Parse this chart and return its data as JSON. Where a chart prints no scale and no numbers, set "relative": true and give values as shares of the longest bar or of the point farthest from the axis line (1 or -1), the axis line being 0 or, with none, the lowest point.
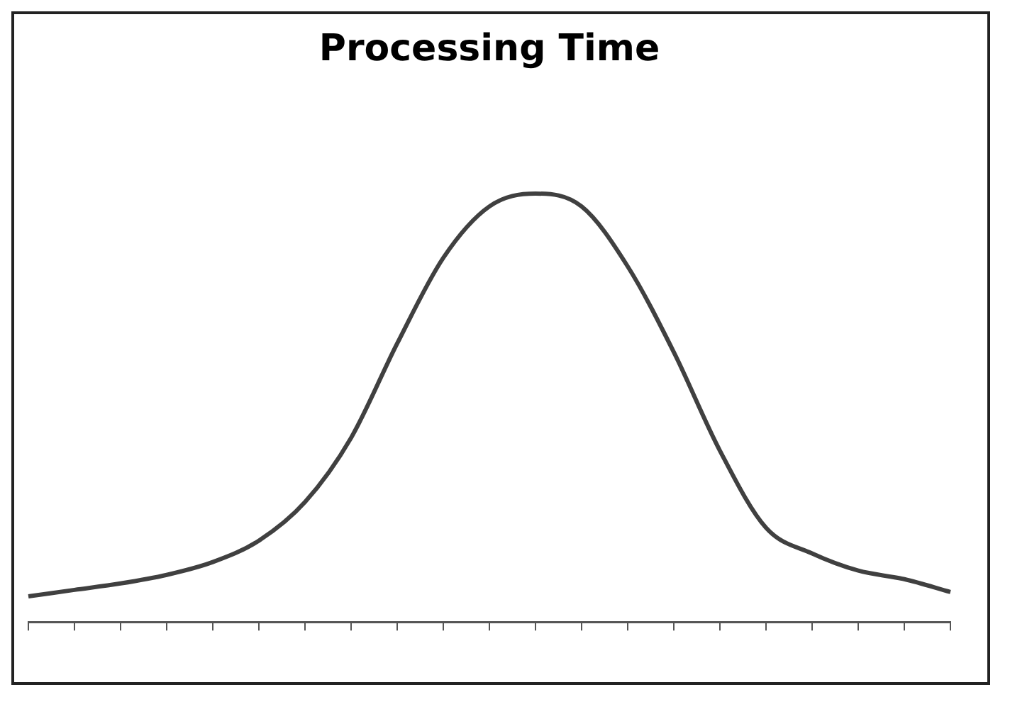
{
  "chart_data": {
    "type": "line",
    "title": "Processing Time",
    "relative": true,
    "grid": false,
    "legend": false,
    "marker": "none",
    "line_style": "solid",
    "categories": [
      null,
      null,
      null,
      null,
      null,
      null,
      null,
      null,
      null,
      null,
      null,
      null,
      null,
      null,
      null,
      null,
      null,
      null,
      null,
      null,
      null
    ],
    "series": [
      {
        "color": "#404040",
        "values": [
          0.06,
          0.075,
          0.09,
          0.11,
          0.14,
          0.19,
          0.28,
          0.43,
          0.65,
          0.85,
          0.97,
          1,
          0.97,
          0.83,
          0.63,
          0.4,
          0.22,
          0.16,
          0.12,
          0.1,
          0.07
        ]
      }
    ]
  }
}
